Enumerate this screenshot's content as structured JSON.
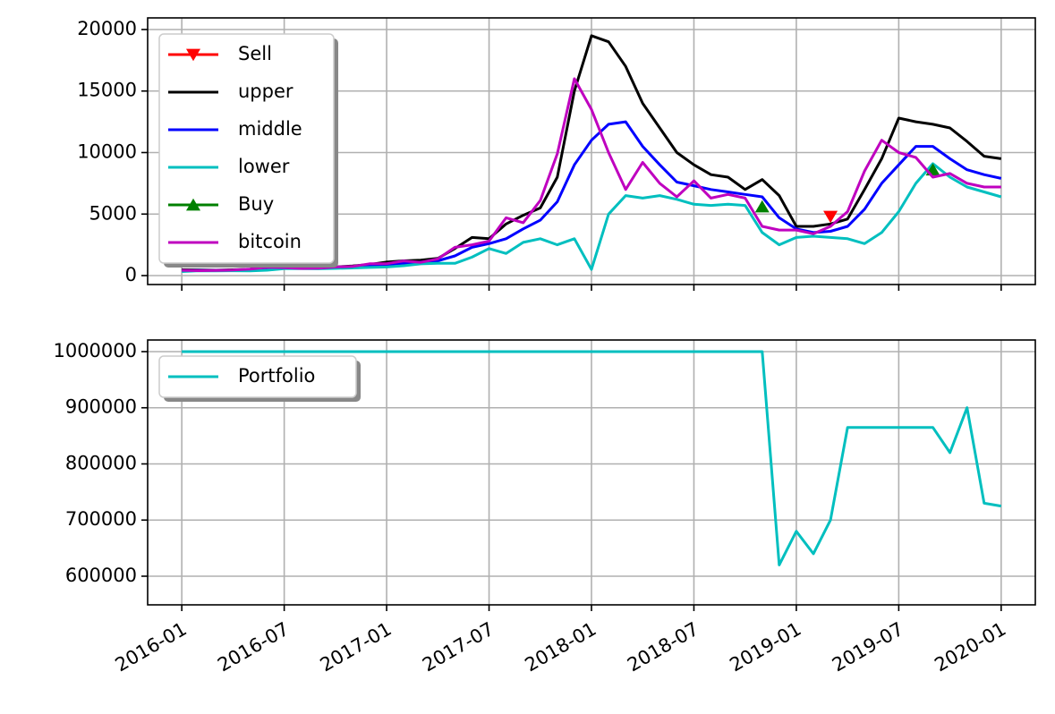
{
  "chart_data": [
    {
      "type": "line",
      "grid": true,
      "legend": "upper left",
      "xlim": [
        "2015-11",
        "2020-03"
      ],
      "ylim": [
        -727,
        20945
      ],
      "yticks": [
        0,
        5000,
        10000,
        15000,
        20000
      ],
      "series": [
        {
          "name": "Sell",
          "color": "#ff0000",
          "marker": "triangle-down",
          "linestyle": "none",
          "x": [
            "2019-03"
          ],
          "values": [
            4800
          ]
        },
        {
          "name": "upper",
          "color": "#000000",
          "x": [
            "2016-01",
            "2016-02",
            "2016-03",
            "2016-04",
            "2016-05",
            "2016-06",
            "2016-07",
            "2016-08",
            "2016-09",
            "2016-10",
            "2016-11",
            "2016-12",
            "2017-01",
            "2017-02",
            "2017-03",
            "2017-04",
            "2017-05",
            "2017-06",
            "2017-07",
            "2017-08",
            "2017-09",
            "2017-10",
            "2017-11",
            "2017-12",
            "2018-01",
            "2018-02",
            "2018-03",
            "2018-04",
            "2018-05",
            "2018-06",
            "2018-07",
            "2018-08",
            "2018-09",
            "2018-10",
            "2018-11",
            "2018-12",
            "2019-01",
            "2019-02",
            "2019-03",
            "2019-04",
            "2019-05",
            "2019-06",
            "2019-07",
            "2019-08",
            "2019-09",
            "2019-10",
            "2019-11",
            "2019-12",
            "2020-01"
          ],
          "values": [
            470,
            450,
            440,
            470,
            520,
            680,
            720,
            680,
            650,
            700,
            780,
            900,
            1100,
            1200,
            1250,
            1400,
            2200,
            3100,
            3000,
            4200,
            4900,
            5500,
            8000,
            15000,
            19500,
            19000,
            17000,
            14000,
            12000,
            10000,
            9000,
            8200,
            8000,
            7000,
            7800,
            6500,
            4000,
            4000,
            4200,
            4600,
            7000,
            9500,
            12800,
            12500,
            12300,
            12000,
            10900,
            9700,
            9500
          ]
        },
        {
          "name": "middle",
          "color": "#0000ff",
          "x": [
            "2016-01",
            "2016-02",
            "2016-03",
            "2016-04",
            "2016-05",
            "2016-06",
            "2016-07",
            "2016-08",
            "2016-09",
            "2016-10",
            "2016-11",
            "2016-12",
            "2017-01",
            "2017-02",
            "2017-03",
            "2017-04",
            "2017-05",
            "2017-06",
            "2017-07",
            "2017-08",
            "2017-09",
            "2017-10",
            "2017-11",
            "2017-12",
            "2018-01",
            "2018-02",
            "2018-03",
            "2018-04",
            "2018-05",
            "2018-06",
            "2018-07",
            "2018-08",
            "2018-09",
            "2018-10",
            "2018-11",
            "2018-12",
            "2019-01",
            "2019-02",
            "2019-03",
            "2019-04",
            "2019-05",
            "2019-06",
            "2019-07",
            "2019-08",
            "2019-09",
            "2019-10",
            "2019-11",
            "2019-12",
            "2020-01"
          ],
          "values": [
            400,
            420,
            410,
            430,
            450,
            560,
            640,
            620,
            600,
            640,
            700,
            780,
            900,
            1000,
            1100,
            1200,
            1600,
            2300,
            2600,
            3000,
            3800,
            4500,
            6000,
            9000,
            11000,
            12300,
            12500,
            10500,
            9000,
            7600,
            7300,
            7000,
            6800,
            6600,
            6400,
            4700,
            3800,
            3500,
            3600,
            4000,
            5400,
            7500,
            9000,
            10500,
            10500,
            9500,
            8600,
            8200,
            7900
          ]
        },
        {
          "name": "lower",
          "color": "#00bfbf",
          "x": [
            "2016-01",
            "2016-02",
            "2016-03",
            "2016-04",
            "2016-05",
            "2016-06",
            "2016-07",
            "2016-08",
            "2016-09",
            "2016-10",
            "2016-11",
            "2016-12",
            "2017-01",
            "2017-02",
            "2017-03",
            "2017-04",
            "2017-05",
            "2017-06",
            "2017-07",
            "2017-08",
            "2017-09",
            "2017-10",
            "2017-11",
            "2017-12",
            "2018-01",
            "2018-02",
            "2018-03",
            "2018-04",
            "2018-05",
            "2018-06",
            "2018-07",
            "2018-08",
            "2018-09",
            "2018-10",
            "2018-11",
            "2018-12",
            "2019-01",
            "2019-02",
            "2019-03",
            "2019-04",
            "2019-05",
            "2019-06",
            "2019-07",
            "2019-08",
            "2019-09",
            "2019-10",
            "2019-11",
            "2019-12",
            "2020-01"
          ],
          "values": [
            330,
            390,
            380,
            390,
            380,
            440,
            560,
            560,
            550,
            580,
            620,
            660,
            700,
            800,
            950,
            1000,
            1000,
            1500,
            2200,
            1800,
            2700,
            3000,
            2500,
            3000,
            500,
            5000,
            6500,
            6300,
            6500,
            6200,
            5800,
            5700,
            5800,
            5700,
            3500,
            2500,
            3100,
            3200,
            3100,
            3000,
            2600,
            3500,
            5200,
            7500,
            9100,
            8000,
            7200,
            6800,
            6400
          ]
        },
        {
          "name": "Buy",
          "color": "#008000",
          "marker": "triangle-up",
          "linestyle": "none",
          "x": [
            "2018-11",
            "2019-09"
          ],
          "values": [
            5600,
            8600
          ]
        },
        {
          "name": "bitcoin",
          "color": "#bf00bf",
          "x": [
            "2016-01",
            "2016-02",
            "2016-03",
            "2016-04",
            "2016-05",
            "2016-06",
            "2016-07",
            "2016-08",
            "2016-09",
            "2016-10",
            "2016-11",
            "2016-12",
            "2017-01",
            "2017-02",
            "2017-03",
            "2017-04",
            "2017-05",
            "2017-06",
            "2017-07",
            "2017-08",
            "2017-09",
            "2017-10",
            "2017-11",
            "2017-12",
            "2018-01",
            "2018-02",
            "2018-03",
            "2018-04",
            "2018-05",
            "2018-06",
            "2018-07",
            "2018-08",
            "2018-09",
            "2018-10",
            "2018-11",
            "2018-12",
            "2019-01",
            "2019-02",
            "2019-03",
            "2019-04",
            "2019-05",
            "2019-06",
            "2019-07",
            "2019-08",
            "2019-09",
            "2019-10",
            "2019-11",
            "2019-12",
            "2020-01"
          ],
          "values": [
            430,
            400,
            415,
            450,
            530,
            670,
            650,
            580,
            600,
            700,
            740,
            960,
            970,
            1190,
            1080,
            1350,
            2300,
            2500,
            2800,
            4700,
            4300,
            6100,
            9900,
            16000,
            13500,
            10000,
            7000,
            9200,
            7500,
            6400,
            7700,
            6300,
            6600,
            6300,
            4000,
            3700,
            3700,
            3400,
            4000,
            5200,
            8500,
            11000,
            10000,
            9600,
            8000,
            8300,
            7500,
            7200,
            7200
          ]
        }
      ]
    },
    {
      "type": "line",
      "grid": true,
      "legend": "upper left",
      "xlim": [
        "2015-11",
        "2020-03"
      ],
      "ylim": [
        549000,
        1020700
      ],
      "yticks": [
        600000,
        700000,
        800000,
        900000,
        1000000
      ],
      "xticks": [
        "2016-01",
        "2016-07",
        "2017-01",
        "2017-07",
        "2018-01",
        "2018-07",
        "2019-01",
        "2019-07",
        "2020-01"
      ],
      "series": [
        {
          "name": "Portfolio",
          "color": "#00bfbf",
          "x": [
            "2016-01",
            "2016-02",
            "2016-03",
            "2016-04",
            "2016-05",
            "2016-06",
            "2016-07",
            "2016-08",
            "2016-09",
            "2016-10",
            "2016-11",
            "2016-12",
            "2017-01",
            "2017-02",
            "2017-03",
            "2017-04",
            "2017-05",
            "2017-06",
            "2017-07",
            "2017-08",
            "2017-09",
            "2017-10",
            "2017-11",
            "2017-12",
            "2018-01",
            "2018-02",
            "2018-03",
            "2018-04",
            "2018-05",
            "2018-06",
            "2018-07",
            "2018-08",
            "2018-09",
            "2018-10",
            "2018-11",
            "2018-12",
            "2019-01",
            "2019-02",
            "2019-03",
            "2019-04",
            "2019-05",
            "2019-06",
            "2019-07",
            "2019-08",
            "2019-09",
            "2019-10",
            "2019-11",
            "2019-12",
            "2020-01"
          ],
          "values": [
            1000000,
            1000000,
            1000000,
            1000000,
            1000000,
            1000000,
            1000000,
            1000000,
            1000000,
            1000000,
            1000000,
            1000000,
            1000000,
            1000000,
            1000000,
            1000000,
            1000000,
            1000000,
            1000000,
            1000000,
            1000000,
            1000000,
            1000000,
            1000000,
            1000000,
            1000000,
            1000000,
            1000000,
            1000000,
            1000000,
            1000000,
            1000000,
            1000000,
            1000000,
            1000000,
            620000,
            680000,
            640000,
            700000,
            865000,
            865000,
            865000,
            865000,
            865000,
            865000,
            820000,
            900000,
            730000,
            725000
          ]
        }
      ]
    }
  ]
}
